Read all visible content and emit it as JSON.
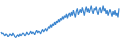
{
  "chart_data": {
    "type": "line",
    "color": "#3d86cf",
    "grid": false,
    "tick_labels": false,
    "xlim": [
      1,
      120
    ],
    "ylim": [
      0,
      45
    ],
    "x": [
      1,
      2,
      3,
      4,
      5,
      6,
      7,
      8,
      9,
      10,
      11,
      12,
      13,
      14,
      15,
      16,
      17,
      18,
      19,
      20,
      21,
      22,
      23,
      24,
      25,
      26,
      27,
      28,
      29,
      30,
      31,
      32,
      33,
      34,
      35,
      36,
      37,
      38,
      39,
      40,
      41,
      42,
      43,
      44,
      45,
      46,
      47,
      48,
      49,
      50,
      51,
      52,
      53,
      54,
      55,
      56,
      57,
      58,
      59,
      60,
      61,
      62,
      63,
      64,
      65,
      66,
      67,
      68,
      69,
      70,
      71,
      72,
      73,
      74,
      75,
      76,
      77,
      78,
      79,
      80,
      81,
      82,
      83,
      84,
      85,
      86,
      87,
      88,
      89,
      90,
      91,
      92,
      93,
      94,
      95,
      96,
      97,
      98,
      99,
      100,
      101,
      102,
      103,
      104,
      105,
      106,
      107,
      108,
      109,
      110,
      111,
      112,
      113,
      114,
      115,
      116,
      117,
      118,
      119,
      120
    ],
    "values": [
      12,
      10,
      11,
      9,
      8,
      10,
      9,
      7,
      8,
      10,
      9,
      8,
      11,
      9,
      7,
      6,
      8,
      9,
      7,
      10,
      8,
      9,
      11,
      10,
      8,
      9,
      12,
      10,
      9,
      11,
      13,
      10,
      12,
      11,
      9,
      12,
      14,
      11,
      13,
      12,
      10,
      13,
      15,
      12,
      14,
      16,
      13,
      15,
      18,
      16,
      20,
      17,
      21,
      19,
      23,
      20,
      24,
      22,
      26,
      23,
      27,
      25,
      29,
      26,
      30,
      28,
      32,
      27,
      31,
      33,
      29,
      34,
      30,
      36,
      32,
      28,
      35,
      38,
      31,
      34,
      37,
      33,
      39,
      35,
      30,
      36,
      40,
      34,
      38,
      33,
      37,
      41,
      35,
      32,
      38,
      36,
      40,
      34,
      31,
      37,
      39,
      33,
      36,
      41,
      35,
      38,
      32,
      36,
      30,
      34,
      37,
      33,
      29,
      35,
      31,
      36,
      30,
      33,
      28,
      38
    ]
  }
}
